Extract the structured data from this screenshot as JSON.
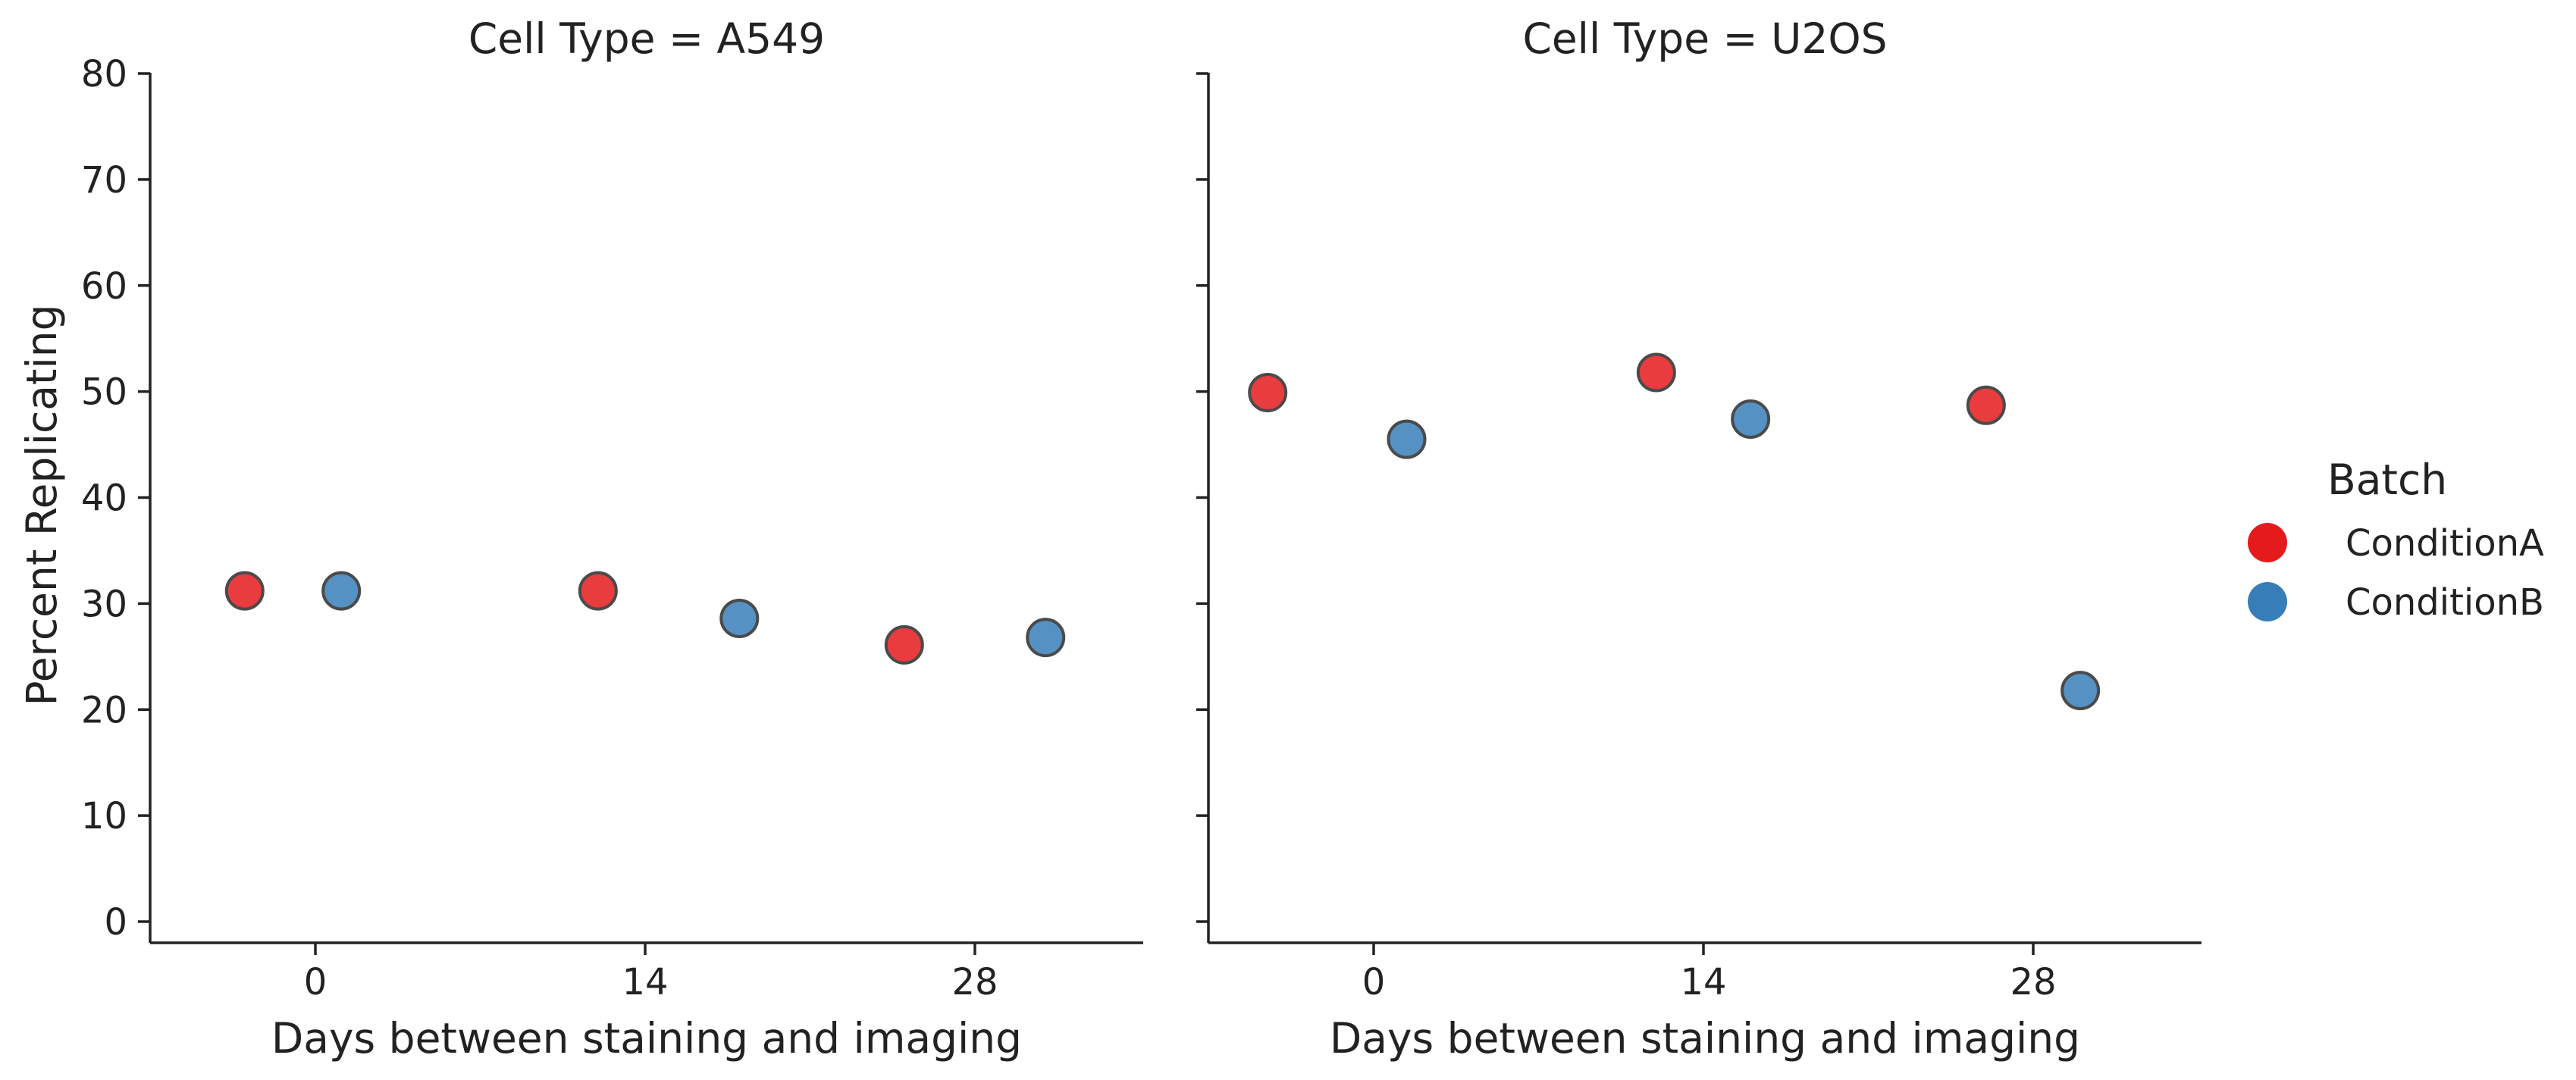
{
  "chart_data": [
    {
      "type": "scatter",
      "title": "Cell Type = A549",
      "xlabel": "Days between staining and imaging",
      "ylabel": "Percent Replicating",
      "xlim": [
        -7,
        35
      ],
      "ylim": [
        -2,
        80
      ],
      "xticks": [
        0,
        14,
        28
      ],
      "xtick_labels": [
        "0",
        "14",
        "28"
      ],
      "yticks": [
        0,
        10,
        20,
        30,
        40,
        50,
        60,
        70,
        80
      ],
      "ytick_labels": [
        "0",
        "10",
        "20",
        "30",
        "40",
        "50",
        "60",
        "70",
        "80"
      ],
      "series": [
        {
          "name": "ConditionA",
          "x": [
            -3,
            12,
            25
          ],
          "y": [
            31.2,
            31.2,
            26.1
          ]
        },
        {
          "name": "ConditionB",
          "x": [
            1.1,
            18,
            31
          ],
          "y": [
            31.2,
            28.6,
            26.8
          ]
        }
      ]
    },
    {
      "type": "scatter",
      "title": "Cell Type = U2OS",
      "xlabel": "Days between staining and imaging",
      "ylabel": "",
      "xlim": [
        -7,
        35
      ],
      "ylim": [
        -2,
        80
      ],
      "xticks": [
        0,
        14,
        28
      ],
      "xtick_labels": [
        "0",
        "14",
        "28"
      ],
      "yticks": [
        0,
        10,
        20,
        30,
        40,
        50,
        60,
        70,
        80
      ],
      "ytick_labels": [],
      "series": [
        {
          "name": "ConditionA",
          "x": [
            -4.5,
            12,
            26
          ],
          "y": [
            49.9,
            51.8,
            48.7
          ]
        },
        {
          "name": "ConditionB",
          "x": [
            1.4,
            16,
            30
          ],
          "y": [
            45.5,
            47.4,
            21.8
          ]
        }
      ]
    }
  ],
  "legend": {
    "title": "Batch",
    "placement": "right",
    "items": [
      {
        "label": "ConditionA",
        "color": "#e41a1c"
      },
      {
        "label": "ConditionB",
        "color": "#377eb8"
      }
    ]
  },
  "colors": {
    "ConditionA": "#e41a1c",
    "ConditionB": "#377eb8"
  },
  "grid": false
}
